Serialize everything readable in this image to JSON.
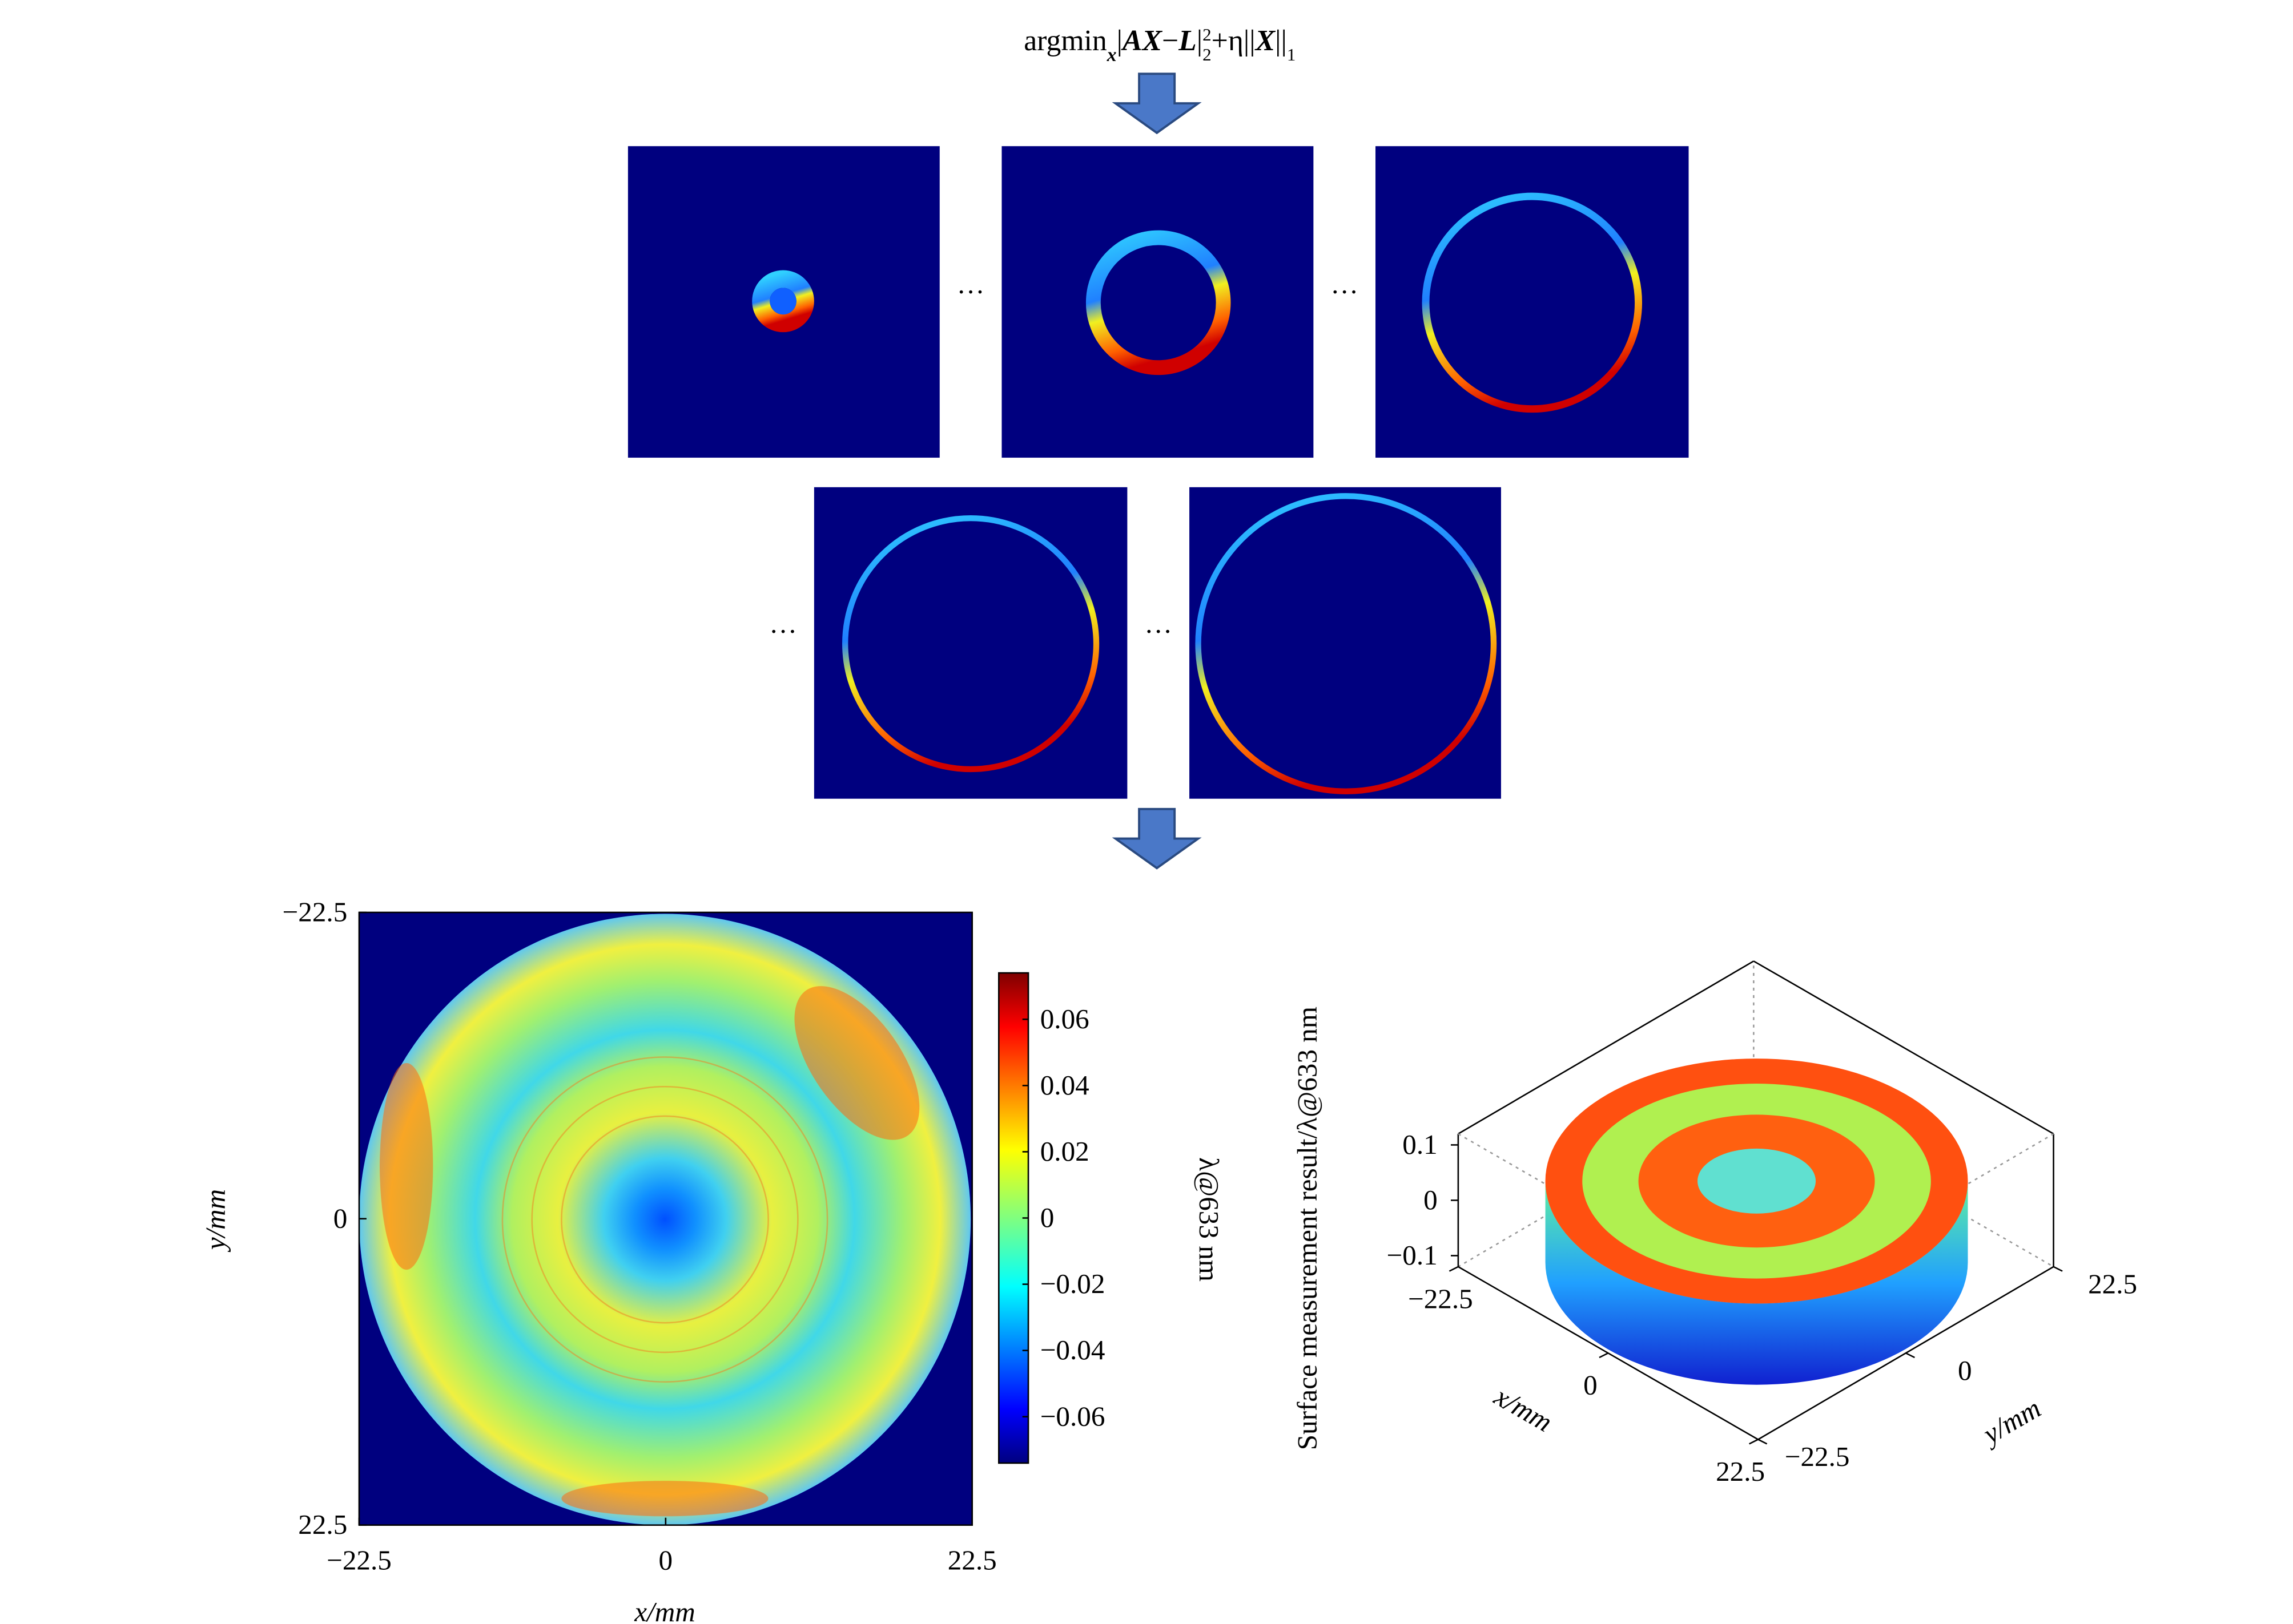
{
  "formula": [
    "argmin",
    "x",
    "|",
    "AX",
    "−",
    "L",
    "|",
    "2",
    "2",
    "+η||",
    "X",
    "||",
    "1"
  ],
  "ellipses": [
    "···",
    "···",
    "···",
    "···"
  ],
  "chart_data": [
    {
      "type": "heatmap",
      "xlabel": "x/mm",
      "ylabel": "y/mm",
      "xlim": [
        -22.5,
        22.5
      ],
      "ylim": [
        -22.5,
        22.5
      ],
      "y_inverted": true,
      "xticks": [
        {
          "value": -22.5,
          "label": "−22.5"
        },
        0,
        22.5
      ],
      "yticks": [
        {
          "value": -22.5,
          "label": "−22.5"
        },
        0,
        22.5
      ],
      "colormap": "jet",
      "colorbar_label": "λ@633 nm",
      "clim": [
        -0.074,
        0.074
      ],
      "colorbar_ticks": [
        {
          "value": -0.06,
          "label": "−0.06"
        },
        {
          "value": -0.04,
          "label": "−0.04"
        },
        {
          "value": -0.02,
          "label": "−0.02"
        },
        0,
        0.02,
        0.04,
        0.06
      ]
    },
    {
      "type": "surface3d",
      "zlabel": "Surface measurement result/λ@633 nm",
      "xlabel": "x/mm",
      "ylabel": "y/mm",
      "xlim": [
        -22.5,
        22.5
      ],
      "ylim": [
        -22.5,
        22.5
      ],
      "zlim": [
        -0.12,
        0.12
      ],
      "xticks": [
        {
          "value": -22.5,
          "label": "−22.5"
        },
        0,
        22.5
      ],
      "yticks": [
        {
          "value": -22.5,
          "label": "−22.5"
        },
        0,
        22.5
      ],
      "zticks": [
        {
          "value": -0.1,
          "label": "−0.1"
        },
        0,
        0.1
      ],
      "colormap": "jet"
    }
  ]
}
